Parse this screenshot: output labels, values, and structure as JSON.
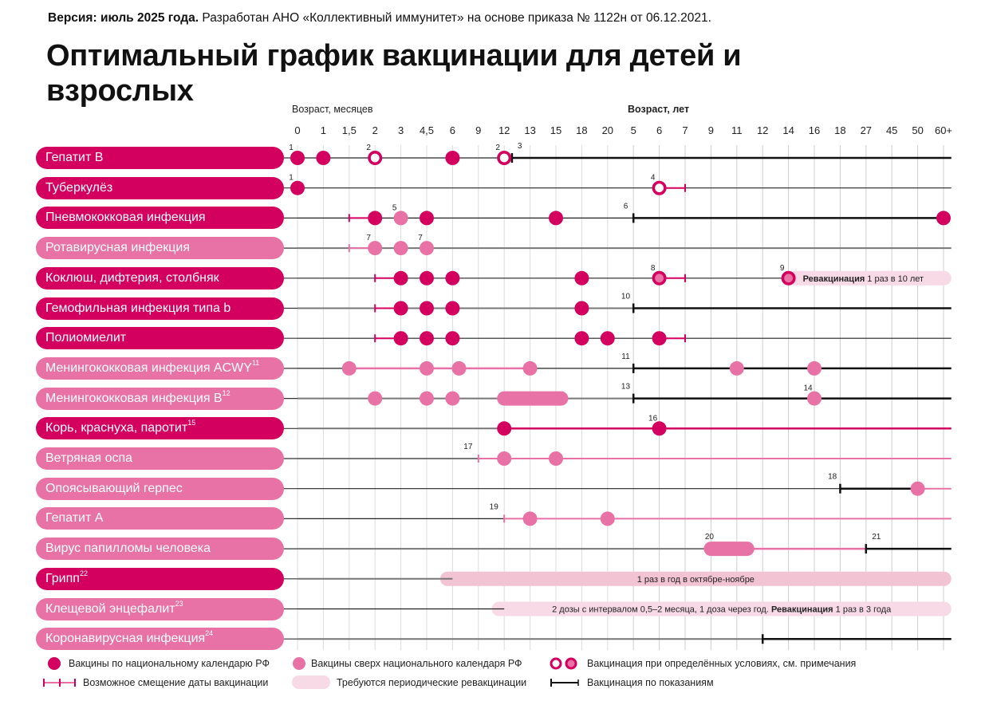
{
  "header": {
    "version_bold": "Версия: июль 2025 года.",
    "version_rest": " Разработан АНО «Коллективный иммунитет» на основе приказа № 1122н от 06.12.2021.",
    "title": "Оптимальный график вакцинации для детей и взрослых"
  },
  "colors": {
    "national": "#d4005f",
    "extra": "#e872a5",
    "revacc_band": "#f2c3d2",
    "revacc_band_light": "#f8d9e6",
    "indication": "#111111",
    "baseline": "#777777",
    "grid": "#dddddd"
  },
  "chart_data": {
    "type": "table",
    "title": "Оптимальный график вакцинации для детей и взрослых",
    "axis_months_label": "Возраст, месяцев",
    "axis_years_label": "Возраст, лет",
    "ticks": [
      "0",
      "1",
      "1,5",
      "2",
      "3",
      "4,5",
      "6",
      "9",
      "12",
      "13",
      "15",
      "18",
      "20",
      "5",
      "6",
      "7",
      "9",
      "11",
      "12",
      "14",
      "16",
      "18",
      "27",
      "45",
      "50",
      "60+"
    ],
    "rows": [
      {
        "name": "Гепатит В",
        "sup": "",
        "type": "national",
        "doses": [
          {
            "at": 0,
            "style": "national",
            "note": "1"
          },
          {
            "at": 1,
            "style": "national"
          },
          {
            "at": 3,
            "style": "ring",
            "note": "2"
          },
          {
            "at": 6,
            "style": "national"
          },
          {
            "at": 8,
            "style": "ring",
            "note": "2"
          }
        ],
        "segments": [
          {
            "from": 0,
            "to": 8,
            "style": "baseline"
          },
          {
            "from": 8.3,
            "to": 25.3,
            "style": "indication",
            "note": "3",
            "note_at": 8.6
          }
        ]
      },
      {
        "name": "Туберкулёз",
        "sup": "",
        "type": "national",
        "doses": [
          {
            "at": 0,
            "style": "national",
            "note": "1"
          },
          {
            "at": 14,
            "style": "ring",
            "note": "4"
          }
        ],
        "segments": [
          {
            "from": 0,
            "to": 25.3,
            "style": "thin"
          },
          {
            "from": 14,
            "to": 15,
            "style": "shift"
          }
        ]
      },
      {
        "name": "Пневмококковая инфекция",
        "sup": "",
        "type": "national",
        "doses": [
          {
            "at": 3,
            "style": "national"
          },
          {
            "at": 4,
            "style": "extra",
            "note": "5"
          },
          {
            "at": 5,
            "style": "national"
          },
          {
            "at": 10,
            "style": "national"
          },
          {
            "at": 25,
            "style": "national"
          }
        ],
        "segments": [
          {
            "from": 0,
            "to": 13,
            "style": "thin"
          },
          {
            "from": 2,
            "to": 3,
            "style": "shift"
          },
          {
            "from": 13,
            "to": 25,
            "style": "indication",
            "note": "6",
            "note_at": 12.7
          }
        ]
      },
      {
        "name": "Ротавирусная инфекция",
        "sup": "",
        "type": "extra",
        "doses": [
          {
            "at": 3,
            "style": "extra",
            "note": "7"
          },
          {
            "at": 4,
            "style": "extra"
          },
          {
            "at": 5,
            "style": "extra",
            "note": "7"
          }
        ],
        "segments": [
          {
            "from": 0,
            "to": 25.3,
            "style": "baseline"
          },
          {
            "from": 2,
            "to": 3,
            "style": "shift-extra"
          }
        ]
      },
      {
        "name": "Коклюш, дифтерия, столбняк",
        "sup": "",
        "type": "national",
        "doses": [
          {
            "at": 4,
            "style": "national"
          },
          {
            "at": 5,
            "style": "national"
          },
          {
            "at": 6,
            "style": "national"
          },
          {
            "at": 11,
            "style": "national"
          },
          {
            "at": 14,
            "style": "ring-fill",
            "note": "8"
          },
          {
            "at": 19,
            "style": "ring-fill",
            "note": "9"
          }
        ],
        "segments": [
          {
            "from": 0,
            "to": 19,
            "style": "thin"
          },
          {
            "from": 3,
            "to": 4,
            "style": "shift"
          },
          {
            "from": 14,
            "to": 15,
            "style": "shift"
          }
        ],
        "band": {
          "from": 19,
          "to": 25.3,
          "text_prefix": "Ревакцинация",
          "text_rest": " 1 раз в 10 лет",
          "style": "light"
        }
      },
      {
        "name": "Гемофильная инфекция типа b",
        "sup": "",
        "type": "national",
        "doses": [
          {
            "at": 4,
            "style": "national"
          },
          {
            "at": 5,
            "style": "national"
          },
          {
            "at": 6,
            "style": "national"
          },
          {
            "at": 11,
            "style": "national"
          }
        ],
        "segments": [
          {
            "from": 0,
            "to": 13,
            "style": "baseline"
          },
          {
            "from": 3,
            "to": 4,
            "style": "shift"
          },
          {
            "from": 13,
            "to": 25.3,
            "style": "indication",
            "note": "10",
            "note_at": 12.7
          }
        ]
      },
      {
        "name": "Полиомиелит",
        "sup": "",
        "type": "national",
        "doses": [
          {
            "at": 4,
            "style": "national"
          },
          {
            "at": 5,
            "style": "national"
          },
          {
            "at": 6,
            "style": "national"
          },
          {
            "at": 11,
            "style": "national"
          },
          {
            "at": 12,
            "style": "national"
          },
          {
            "at": 14,
            "style": "national"
          }
        ],
        "segments": [
          {
            "from": 0,
            "to": 25.3,
            "style": "thin"
          },
          {
            "from": 3,
            "to": 4,
            "style": "shift"
          },
          {
            "from": 14,
            "to": 15,
            "style": "shift"
          }
        ]
      },
      {
        "name": "Менингококковая инфекция ACWY",
        "sup": "11",
        "type": "extra",
        "doses": [
          {
            "at": 2,
            "style": "extra"
          },
          {
            "at": 5,
            "style": "extra"
          },
          {
            "at": 6.25,
            "style": "extra"
          },
          {
            "at": 9,
            "style": "extra"
          },
          {
            "at": 17,
            "style": "extra"
          },
          {
            "at": 20,
            "style": "extra"
          }
        ],
        "segments": [
          {
            "from": 0,
            "to": 13,
            "style": "thin"
          },
          {
            "from": 2,
            "to": 9,
            "style": "extra-line"
          },
          {
            "from": 13,
            "to": 25.3,
            "style": "indication",
            "note": "11",
            "note_at": 12.7
          }
        ]
      },
      {
        "name": "Менингококковая инфекция B",
        "sup": "12",
        "type": "extra",
        "doses": [
          {
            "at": 3,
            "style": "extra"
          },
          {
            "at": 5,
            "style": "extra"
          },
          {
            "at": 6,
            "style": "extra"
          },
          {
            "at": 20,
            "style": "extra",
            "note": "14"
          }
        ],
        "segments": [
          {
            "from": 0,
            "to": 13,
            "style": "baseline"
          },
          {
            "from": 13,
            "to": 25.3,
            "style": "indication",
            "note": "13",
            "note_at": 12.7
          }
        ],
        "pill": {
          "from": 8,
          "to": 10.2
        }
      },
      {
        "name": "Корь, краснуха, паротит",
        "sup": "15",
        "type": "national",
        "doses": [
          {
            "at": 8,
            "style": "national"
          },
          {
            "at": 14,
            "style": "national",
            "note": "16"
          }
        ],
        "segments": [
          {
            "from": 0,
            "to": 8,
            "style": "baseline"
          },
          {
            "from": 8,
            "to": 25.3,
            "style": "national-line"
          }
        ]
      },
      {
        "name": "Ветряная оспа",
        "sup": "",
        "type": "extra",
        "doses": [
          {
            "at": 8,
            "style": "extra"
          },
          {
            "at": 10,
            "style": "extra"
          }
        ],
        "segments": [
          {
            "from": 0,
            "to": 7,
            "style": "baseline"
          },
          {
            "from": 7,
            "to": 25.3,
            "style": "shift-extra",
            "note": "17",
            "note_at": 6.6
          }
        ]
      },
      {
        "name": "Опоясывающий герпес",
        "sup": "",
        "type": "extra",
        "doses": [
          {
            "at": 24,
            "style": "extra"
          }
        ],
        "segments": [
          {
            "from": 0,
            "to": 21,
            "style": "thin"
          },
          {
            "from": 21,
            "to": 23.8,
            "style": "indication",
            "note": "18",
            "note_at": 20.7
          },
          {
            "from": 24.2,
            "to": 25.3,
            "style": "shift-extra"
          }
        ]
      },
      {
        "name": "Гепатит А",
        "sup": "",
        "type": "extra",
        "doses": [
          {
            "at": 9,
            "style": "extra"
          },
          {
            "at": 12,
            "style": "extra"
          }
        ],
        "segments": [
          {
            "from": 0,
            "to": 8,
            "style": "thin"
          },
          {
            "from": 8,
            "to": 25.3,
            "style": "shift-extra",
            "note": "19",
            "note_at": 7.6
          }
        ]
      },
      {
        "name": "Вирус папилломы человека",
        "sup": "",
        "type": "extra",
        "doses": [],
        "segments": [
          {
            "from": 0,
            "to": 16,
            "style": "baseline"
          },
          {
            "from": 17.4,
            "to": 22,
            "style": "extra-line"
          },
          {
            "from": 22,
            "to": 25.3,
            "style": "indication",
            "note": "21",
            "note_at": 22.4
          }
        ],
        "pill": {
          "from": 16,
          "to": 17.4,
          "note": "20"
        }
      },
      {
        "name": "Грипп",
        "sup": "22",
        "type": "national",
        "doses": [],
        "segments": [
          {
            "from": 0,
            "to": 6,
            "style": "baseline"
          }
        ],
        "band": {
          "from": 5.8,
          "to": 25.3,
          "text_prefix": "",
          "text_rest": "1 раз в год в октябре-ноябре",
          "style": "dark"
        }
      },
      {
        "name": "Клещевой энцефалит",
        "sup": "23",
        "type": "extra",
        "doses": [],
        "segments": [
          {
            "from": 0,
            "to": 8,
            "style": "thin"
          }
        ],
        "band": {
          "from": 7.8,
          "to": 25.3,
          "text_prefix": "",
          "text_rest": "2 дозы с интервалом 0,5–2 месяца, 1 доза через год. ",
          "text_bold_suffix": "Ревакцинация",
          "text_after": " 1 раз в 3 года",
          "style": "light"
        }
      },
      {
        "name": "Коронавирусная инфекция",
        "sup": "24",
        "type": "extra",
        "doses": [],
        "segments": [
          {
            "from": 0,
            "to": 18,
            "style": "baseline"
          },
          {
            "from": 18,
            "to": 25.3,
            "style": "indication"
          }
        ]
      }
    ]
  },
  "legend": {
    "national": "Вакцины по национальному календарю РФ",
    "extra": "Вакцины сверх национального календаря РФ",
    "conditional": "Вакцинация при определённых условиях, см. примечания",
    "shift": "Возможное смещение даты вакцинации",
    "periodic": "Требуются периодические ревакцинации",
    "indication": "Вакцинация по показаниям"
  }
}
